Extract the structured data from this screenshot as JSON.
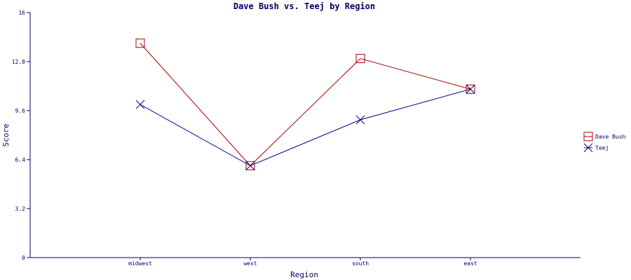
{
  "chart_data": {
    "type": "line",
    "title": "Dave Bush vs. Teej by Region",
    "xlabel": "Region",
    "ylabel": "Score",
    "categories": [
      "midwest",
      "west",
      "south",
      "east"
    ],
    "ylim": [
      0,
      16
    ],
    "yticks": [
      "0",
      "3.2",
      "6.4",
      "9.6",
      "12.8",
      "16"
    ],
    "grid": false,
    "legend_position": "right",
    "series": [
      {
        "name": "Dave Bush",
        "values": [
          14.0,
          6.0,
          13.0,
          11.0
        ],
        "color": "#aa0000",
        "marker": "square"
      },
      {
        "name": "Teej",
        "values": [
          10.0,
          6.0,
          9.0,
          11.0
        ],
        "color": "#000088",
        "marker": "x"
      }
    ]
  }
}
